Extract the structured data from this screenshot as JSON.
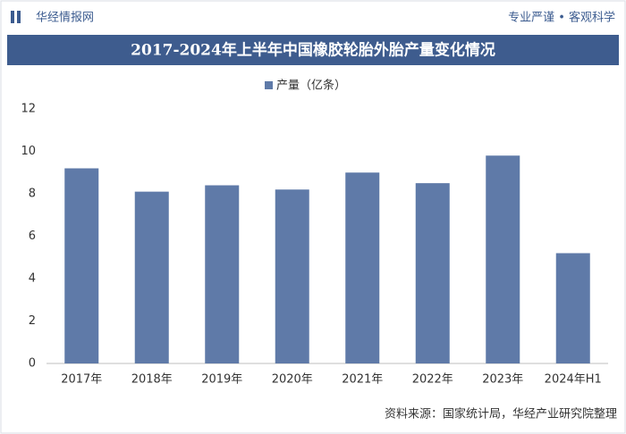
{
  "header": {
    "logo_text": "华经情报网",
    "slogan": "专业严谨 • 客观科学"
  },
  "chart_data": {
    "type": "bar",
    "title": "2017-2024年上半年中国橡胶轮胎外胎产量变化情况",
    "categories": [
      "2017年",
      "2018年",
      "2019年",
      "2020年",
      "2021年",
      "2022年",
      "2023年",
      "2024年H1"
    ],
    "series": [
      {
        "name": "产量（亿条）",
        "color": "#5f7aa8",
        "values": [
          9.2,
          8.1,
          8.4,
          8.2,
          9.0,
          8.5,
          9.8,
          5.2
        ]
      }
    ],
    "ylim": [
      0,
      12
    ],
    "yticks": [
      0,
      2,
      4,
      6,
      8,
      10,
      12
    ],
    "grid": false,
    "legend": "top"
  },
  "footer": {
    "source": "资料来源：国家统计局，华经产业研究院整理"
  }
}
